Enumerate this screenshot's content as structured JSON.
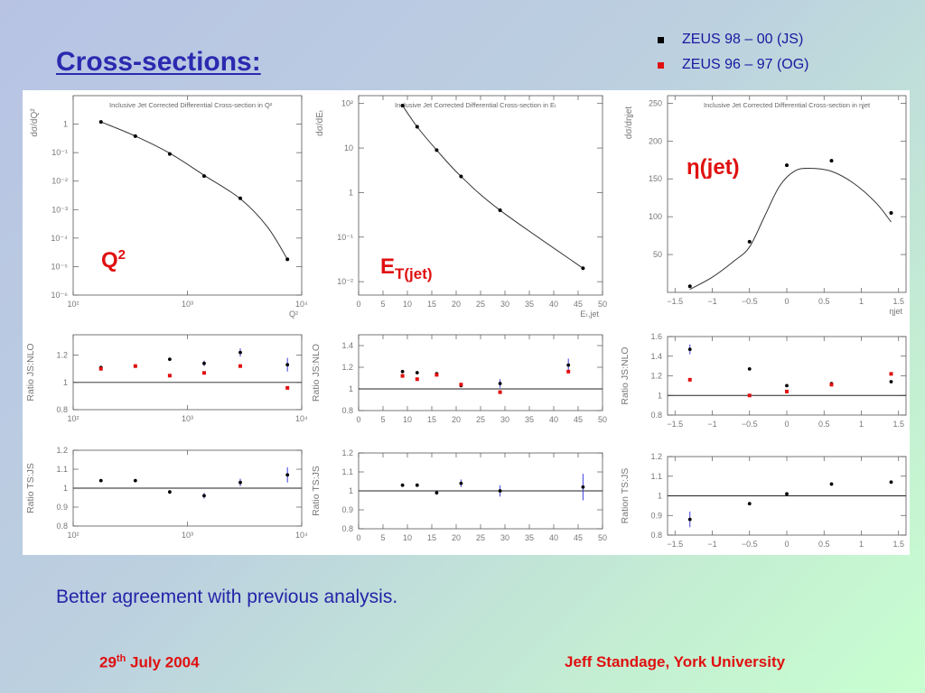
{
  "slide": {
    "title": "Cross-sections:",
    "caption": "Better agreement with previous analysis.",
    "footer_date_day": "29",
    "footer_date_sup": "th",
    "footer_date_rest": " July 2004",
    "footer_author": "Jeff Standage, York University"
  },
  "legend": [
    {
      "label": "ZEUS 98 – 00 (JS)",
      "color": "#000000"
    },
    {
      "label": "ZEUS 96 – 97 (OG)",
      "color": "#e01010"
    }
  ],
  "colors": {
    "accent_red": "#e01010",
    "title_blue": "#2a2ab0",
    "error_bar_blue": "#4040e0"
  },
  "chart_data": [
    {
      "id": "q2-xsec",
      "type": "line",
      "title": "Inclusive Jet Corrected Differential Cross-section in Q²",
      "ylabel": "dσ/dQ²",
      "xlabel": "Q²",
      "label": "Q²",
      "xscale": "log",
      "yscale": "log",
      "xlim": [
        100,
        10000
      ],
      "ylim": [
        1e-06,
        10
      ],
      "xticks": [
        100,
        1000,
        10000
      ],
      "xticklabels": [
        "10²",
        "10³",
        "10⁴"
      ],
      "yticks": [
        1e-06,
        1e-05,
        0.0001,
        0.001,
        0.01,
        0.1,
        1
      ],
      "yticklabels": [
        "10⁻⁶",
        "10⁻⁵",
        "10⁻⁴",
        "10⁻³",
        "10⁻²",
        "10⁻¹",
        "1"
      ],
      "points": [
        [
          175,
          1.2
        ],
        [
          350,
          0.38
        ],
        [
          700,
          0.09
        ],
        [
          1400,
          0.015
        ],
        [
          2900,
          0.0025
        ],
        [
          7500,
          1.8e-05
        ]
      ],
      "curve": [
        [
          175,
          1.2
        ],
        [
          350,
          0.38
        ],
        [
          700,
          0.095
        ],
        [
          1400,
          0.016
        ],
        [
          2900,
          0.0024
        ],
        [
          5000,
          0.00025
        ],
        [
          7500,
          1.8e-05
        ]
      ]
    },
    {
      "id": "et-xsec",
      "type": "line",
      "title": "Inclusive Jet Corrected Differential Cross-section in Eₜ",
      "ylabel": "dσ/dEₜ",
      "xlabel": "Eₜ,jet",
      "label": "E",
      "label_sub": "T(jet)",
      "xscale": "linear",
      "yscale": "log",
      "xlim": [
        0,
        50
      ],
      "ylim": [
        0.005,
        150
      ],
      "xticks": [
        0,
        5,
        10,
        15,
        20,
        25,
        30,
        35,
        40,
        45,
        50
      ],
      "xticklabels": [
        "0",
        "5",
        "10",
        "15",
        "20",
        "25",
        "30",
        "35",
        "40",
        "45",
        "50"
      ],
      "yticks": [
        0.01,
        0.1,
        1,
        10,
        100
      ],
      "yticklabels": [
        "10⁻²",
        "10⁻¹",
        "1",
        "10",
        "10²"
      ],
      "points": [
        [
          9,
          90
        ],
        [
          12,
          30
        ],
        [
          16,
          9
        ],
        [
          21,
          2.3
        ],
        [
          29,
          0.4
        ],
        [
          46,
          0.02
        ]
      ],
      "curve": [
        [
          9,
          90
        ],
        [
          12,
          30
        ],
        [
          16,
          9
        ],
        [
          21,
          2.3
        ],
        [
          29,
          0.4
        ],
        [
          46,
          0.02
        ]
      ]
    },
    {
      "id": "eta-xsec",
      "type": "line",
      "title": "Inclusive Jet Corrected Differential Cross-section in ηjet",
      "ylabel": "dσ/dηjet",
      "xlabel": "ηjet",
      "label": "η(jet)",
      "xscale": "linear",
      "yscale": "linear",
      "xlim": [
        -1.6,
        1.6
      ],
      "ylim": [
        0,
        260
      ],
      "xticks": [
        -1.5,
        -1,
        -0.5,
        0,
        0.5,
        1,
        1.5
      ],
      "xticklabels": [
        "−1.5",
        "−1",
        "−0.5",
        "0",
        "0.5",
        "1",
        "1.5"
      ],
      "yticks": [
        50,
        100,
        150,
        200,
        250
      ],
      "yticklabels": [
        "50",
        "100",
        "150",
        "200",
        "250"
      ],
      "points": [
        [
          -1.3,
          8
        ],
        [
          -0.5,
          67
        ],
        [
          0,
          168
        ],
        [
          0.6,
          174
        ],
        [
          1.4,
          105
        ]
      ],
      "curve": [
        [
          -1.3,
          4
        ],
        [
          -1.0,
          20
        ],
        [
          -0.7,
          42
        ],
        [
          -0.5,
          60
        ],
        [
          -0.3,
          100
        ],
        [
          -0.1,
          140
        ],
        [
          0.1,
          160
        ],
        [
          0.3,
          164
        ],
        [
          0.6,
          160
        ],
        [
          0.9,
          144
        ],
        [
          1.2,
          118
        ],
        [
          1.4,
          93
        ]
      ]
    },
    {
      "id": "q2-ratio-nlo",
      "type": "scatter",
      "ylabel": "Ratio JS:NLO",
      "xscale": "log",
      "yscale": "linear",
      "xlim": [
        100,
        10000
      ],
      "ylim": [
        0.8,
        1.35
      ],
      "xticks": [
        100,
        1000,
        10000
      ],
      "xticklabels": [
        "10²",
        "10³",
        "10⁴"
      ],
      "yticks": [
        0.8,
        1,
        1.2
      ],
      "yticklabels": [
        "0.8",
        "1",
        "1.2"
      ],
      "refline": 1,
      "series": [
        {
          "name": "JS",
          "color": "#000000",
          "points": [
            [
              175,
              1.11
            ],
            [
              350,
              1.12
            ],
            [
              700,
              1.17
            ],
            [
              1400,
              1.14
            ],
            [
              2900,
              1.22
            ],
            [
              7500,
              1.13
            ]
          ],
          "errors": [
            0.01,
            0.01,
            0.01,
            0.02,
            0.03,
            0.05
          ]
        },
        {
          "name": "OG",
          "color": "#e01010",
          "points": [
            [
              175,
              1.1
            ],
            [
              350,
              1.12
            ],
            [
              700,
              1.05
            ],
            [
              1400,
              1.07
            ],
            [
              2900,
              1.12
            ],
            [
              7500,
              0.96
            ]
          ]
        }
      ]
    },
    {
      "id": "et-ratio-nlo",
      "type": "scatter",
      "ylabel": "Ratio JS:NLO",
      "xscale": "linear",
      "yscale": "linear",
      "xlim": [
        0,
        50
      ],
      "ylim": [
        0.8,
        1.5
      ],
      "xticks": [
        0,
        5,
        10,
        15,
        20,
        25,
        30,
        35,
        40,
        45,
        50
      ],
      "xticklabels": [
        "0",
        "5",
        "10",
        "15",
        "20",
        "25",
        "30",
        "35",
        "40",
        "45",
        "50"
      ],
      "yticks": [
        0.8,
        1,
        1.2,
        1.4
      ],
      "yticklabels": [
        "0.8",
        "1",
        "1.2",
        "1.4"
      ],
      "refline": 1,
      "series": [
        {
          "name": "JS",
          "color": "#000000",
          "points": [
            [
              9,
              1.16
            ],
            [
              12,
              1.15
            ],
            [
              16,
              1.14
            ],
            [
              21,
              1.03
            ],
            [
              29,
              1.05
            ],
            [
              43,
              1.22
            ]
          ],
          "errors": [
            0.01,
            0.01,
            0.01,
            0.01,
            0.04,
            0.06
          ]
        },
        {
          "name": "OG",
          "color": "#e01010",
          "points": [
            [
              9,
              1.12
            ],
            [
              12,
              1.09
            ],
            [
              16,
              1.13
            ],
            [
              21,
              1.04
            ],
            [
              29,
              0.97
            ],
            [
              43,
              1.16
            ]
          ]
        }
      ]
    },
    {
      "id": "eta-ratio-nlo",
      "type": "scatter",
      "ylabel": "Ratio JS:NLO",
      "xscale": "linear",
      "yscale": "linear",
      "xlim": [
        -1.6,
        1.6
      ],
      "ylim": [
        0.8,
        1.6
      ],
      "xticks": [
        -1.5,
        -1,
        -0.5,
        0,
        0.5,
        1,
        1.5
      ],
      "xticklabels": [
        "−1.5",
        "−1",
        "−0.5",
        "0",
        "0.5",
        "1",
        "1.5"
      ],
      "yticks": [
        0.8,
        1,
        1.2,
        1.4,
        1.6
      ],
      "yticklabels": [
        "0.8",
        "1",
        "1.2",
        "1.4",
        "1.6"
      ],
      "refline": 1,
      "series": [
        {
          "name": "JS",
          "color": "#000000",
          "points": [
            [
              -1.3,
              1.47
            ],
            [
              -0.5,
              1.27
            ],
            [
              0,
              1.1
            ],
            [
              0.6,
              1.12
            ],
            [
              1.4,
              1.14
            ]
          ],
          "errors": [
            0.05,
            0.01,
            0.01,
            0.01,
            0.01
          ]
        },
        {
          "name": "OG",
          "color": "#e01010",
          "points": [
            [
              -1.3,
              1.16
            ],
            [
              -0.5,
              1.0
            ],
            [
              0,
              1.04
            ],
            [
              0.6,
              1.11
            ],
            [
              1.4,
              1.22
            ]
          ]
        }
      ]
    },
    {
      "id": "q2-ratio-ts",
      "type": "scatter",
      "ylabel": "Ratio TS:JS",
      "xscale": "log",
      "yscale": "linear",
      "xlim": [
        100,
        10000
      ],
      "ylim": [
        0.8,
        1.2
      ],
      "xticks": [
        100,
        1000,
        10000
      ],
      "xticklabels": [
        "10²",
        "10³",
        "10⁴"
      ],
      "yticks": [
        0.8,
        0.9,
        1,
        1.1,
        1.2
      ],
      "yticklabels": [
        "0.8",
        "0.9",
        "1",
        "1.1",
        "1.2"
      ],
      "refline": 1,
      "series": [
        {
          "name": "TS:JS",
          "color": "#000000",
          "points": [
            [
              175,
              1.04
            ],
            [
              350,
              1.04
            ],
            [
              700,
              0.98
            ],
            [
              1400,
              0.96
            ],
            [
              2900,
              1.03
            ],
            [
              7500,
              1.07
            ]
          ],
          "errors": [
            0.005,
            0.005,
            0.01,
            0.015,
            0.02,
            0.04
          ]
        }
      ]
    },
    {
      "id": "et-ratio-ts",
      "type": "scatter",
      "ylabel": "Ratio TS:JS",
      "xscale": "linear",
      "yscale": "linear",
      "xlim": [
        0,
        50
      ],
      "ylim": [
        0.8,
        1.2
      ],
      "xticks": [
        0,
        5,
        10,
        15,
        20,
        25,
        30,
        35,
        40,
        45,
        50
      ],
      "xticklabels": [
        "0",
        "5",
        "10",
        "15",
        "20",
        "25",
        "30",
        "35",
        "40",
        "45",
        "50"
      ],
      "yticks": [
        0.8,
        0.9,
        1,
        1.1,
        1.2
      ],
      "yticklabels": [
        "0.8",
        "0.9",
        "1",
        "1.1",
        "1.2"
      ],
      "refline": 1,
      "series": [
        {
          "name": "TS:JS",
          "color": "#000000",
          "points": [
            [
              9,
              1.03
            ],
            [
              12,
              1.03
            ],
            [
              16,
              0.99
            ],
            [
              21,
              1.04
            ],
            [
              29,
              1.0
            ],
            [
              46,
              1.02
            ]
          ],
          "errors": [
            0.005,
            0.005,
            0.01,
            0.02,
            0.03,
            0.07
          ]
        }
      ]
    },
    {
      "id": "eta-ratio-ts",
      "type": "scatter",
      "ylabel": "Ration TS:JS",
      "xscale": "linear",
      "yscale": "linear",
      "xlim": [
        -1.6,
        1.6
      ],
      "ylim": [
        0.8,
        1.2
      ],
      "xticks": [
        -1.5,
        -1,
        -0.5,
        0,
        0.5,
        1,
        1.5
      ],
      "xticklabels": [
        "−1.5",
        "−1",
        "−0.5",
        "0",
        "0.5",
        "1",
        "1.5"
      ],
      "yticks": [
        0.8,
        0.9,
        1,
        1.1,
        1.2
      ],
      "yticklabels": [
        "0.8",
        "0.9",
        "1",
        "1.1",
        "1.2"
      ],
      "refline": 1,
      "series": [
        {
          "name": "TS:JS",
          "color": "#000000",
          "points": [
            [
              -1.3,
              0.88
            ],
            [
              -0.5,
              0.96
            ],
            [
              0,
              1.01
            ],
            [
              0.6,
              1.06
            ],
            [
              1.4,
              1.07
            ]
          ],
          "errors": [
            0.04,
            0.005,
            0.005,
            0.005,
            0.005
          ]
        }
      ]
    }
  ]
}
